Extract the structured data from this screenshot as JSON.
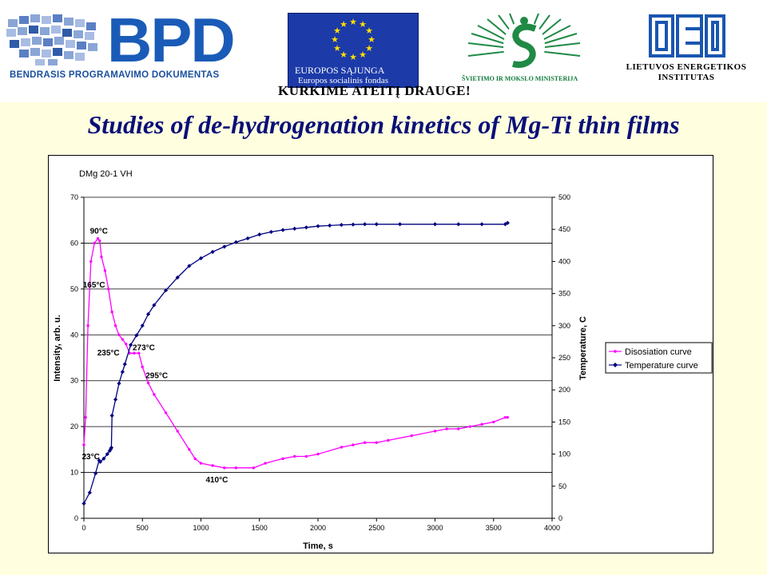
{
  "header": {
    "bpd_logo": {
      "letters": "BPD",
      "subtitle": "BENDRASIS PROGRAMAVIMO DOKUMENTAS"
    },
    "eu_logo": {
      "line1": "EUROPOS SĄJUNGA",
      "line2": "Europos socialinis fondas"
    },
    "motto": "KURKIME ATEITĮ DRAUGE!",
    "ministry_logo": {
      "text": "ŠVIETIMO IR MOKSLO MINISTERIJA"
    },
    "lei_logo": {
      "line1": "LIETUVOS ENERGETIKOS",
      "line2": "INSTITUTAS"
    }
  },
  "slide": {
    "title": "Studies of de-hydrogenation kinetics of Mg-Ti thin films"
  },
  "colors": {
    "intensity": "#FF00FF",
    "temperature": "#000080",
    "title": "#0a0f78",
    "background": "#FFFFE0"
  },
  "chart_data": {
    "type": "line",
    "title": "DMg 20-1 VH",
    "xlabel": "Time, s",
    "ylabel_left": "Intensity, arb. u.",
    "ylabel_right": "Temperature, C",
    "xlim": [
      0,
      4000
    ],
    "ylim_left": [
      0,
      70
    ],
    "ylim_right": [
      0,
      500
    ],
    "xticks": [
      0,
      500,
      1000,
      1500,
      2000,
      2500,
      3000,
      3500,
      4000
    ],
    "yticks_left": [
      0,
      10,
      20,
      30,
      40,
      50,
      60,
      70
    ],
    "yticks_right": [
      0,
      50,
      100,
      150,
      200,
      250,
      300,
      350,
      400,
      450,
      500
    ],
    "grid": "horizontal",
    "legend": "right",
    "series": [
      {
        "name": "Disosiation curve",
        "axis": "left",
        "color": "#FF00FF",
        "marker": "dot",
        "x": [
          0,
          15,
          35,
          60,
          90,
          120,
          135,
          150,
          180,
          210,
          240,
          270,
          300,
          330,
          360,
          390,
          430,
          470,
          500,
          550,
          600,
          700,
          800,
          900,
          950,
          1000,
          1100,
          1200,
          1300,
          1450,
          1550,
          1700,
          1800,
          1900,
          2000,
          2200,
          2300,
          2400,
          2500,
          2600,
          2800,
          3000,
          3100,
          3200,
          3300,
          3400,
          3500,
          3600,
          3620
        ],
        "y": [
          16,
          22,
          42,
          56,
          60,
          61,
          60.5,
          57,
          54,
          50,
          45,
          42,
          40,
          39,
          38,
          36,
          36,
          36,
          33,
          29.5,
          27,
          23,
          19,
          15,
          13,
          12,
          11.5,
          11,
          11,
          11,
          12,
          13,
          13.5,
          13.5,
          14,
          15.5,
          16,
          16.5,
          16.5,
          17,
          18,
          19,
          19.5,
          19.5,
          20,
          20.5,
          21,
          22,
          22
        ]
      },
      {
        "name": "Temperature curve",
        "axis": "right",
        "color": "#000080",
        "marker": "diamond",
        "x": [
          0,
          50,
          100,
          130,
          140,
          170,
          200,
          220,
          230,
          235,
          240,
          270,
          300,
          330,
          350,
          400,
          450,
          500,
          550,
          600,
          700,
          800,
          900,
          1000,
          1100,
          1200,
          1300,
          1400,
          1500,
          1600,
          1700,
          1800,
          1900,
          2000,
          2100,
          2200,
          2300,
          2400,
          2500,
          2700,
          3000,
          3200,
          3400,
          3600,
          3620
        ],
        "y": [
          23,
          40,
          70,
          90,
          88,
          93,
          100,
          105,
          108,
          110,
          160,
          185,
          210,
          228,
          240,
          270,
          285,
          300,
          318,
          332,
          355,
          375,
          393,
          405,
          415,
          423,
          430,
          436,
          442,
          446,
          449,
          451,
          453,
          455,
          456,
          457,
          457.5,
          458,
          458,
          458,
          458,
          458,
          458,
          458,
          460
        ]
      }
    ],
    "annotations": [
      {
        "text": "90°C",
        "x": 120,
        "y": 61,
        "axis": "left"
      },
      {
        "text": "165°C",
        "x": 210,
        "y": 50,
        "axis": "left"
      },
      {
        "text": "235°C",
        "x": 360,
        "y": 38,
        "axis": "left"
      },
      {
        "text": "273°C",
        "x": 430,
        "y": 36,
        "axis": "left"
      },
      {
        "text": "295°C",
        "x": 500,
        "y": 33,
        "axis": "left"
      },
      {
        "text": "23°C",
        "x": 10,
        "y": 16,
        "axis": "left"
      },
      {
        "text": "410°C",
        "x": 1300,
        "y": 11,
        "axis": "left"
      }
    ]
  }
}
